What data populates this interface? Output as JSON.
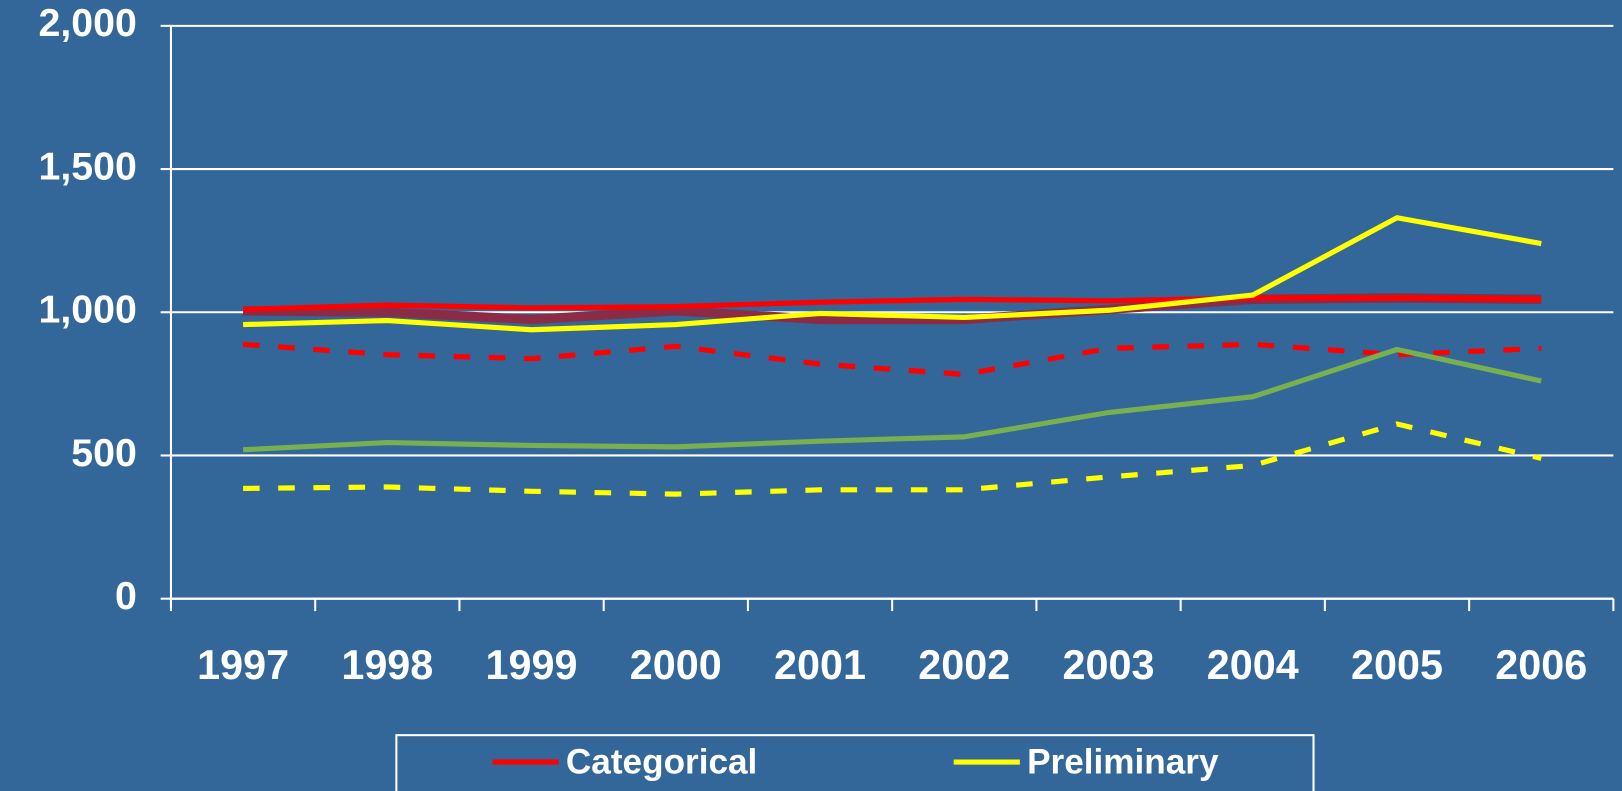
{
  "chart_data": {
    "type": "line",
    "categories": [
      "1997",
      "1998",
      "1999",
      "2000",
      "2001",
      "2002",
      "2003",
      "2004",
      "2005",
      "2006"
    ],
    "ylim": [
      0,
      2000
    ],
    "yticks": [
      0,
      500,
      {
        "value": 1000,
        "label": "1,000"
      },
      {
        "value": 1500,
        "label": "1,500"
      },
      {
        "value": 2000,
        "label": "2,000"
      }
    ],
    "grid": true,
    "legend": "bottom",
    "series": [
      {
        "color": "#8b2b45",
        "width": 9,
        "dash": false,
        "values": [
          1005,
          1000,
          975,
          1005,
          975,
          975,
          1010,
          1045,
          1050,
          1045
        ]
      },
      {
        "name": "Categorical",
        "color": "#ff0000",
        "width": 5,
        "dash": false,
        "values": [
          1010,
          1025,
          1015,
          1020,
          1035,
          1045,
          1040,
          1050,
          1050,
          1045
        ]
      },
      {
        "name": "Preliminary",
        "color": "#ffff00",
        "width": 5,
        "dash": false,
        "values": [
          957,
          971,
          939,
          957,
          996,
          982,
          1007,
          1060,
          1330,
          1240
        ]
      },
      {
        "color": "#ff0000",
        "width": 5,
        "dash": true,
        "values": [
          888,
          852,
          838,
          881,
          819,
          783,
          874,
          888,
          852,
          874
        ]
      },
      {
        "color": "#77b050",
        "width": 5,
        "dash": false,
        "values": [
          520,
          545,
          535,
          530,
          550,
          565,
          650,
          705,
          870,
          760
        ]
      },
      {
        "color": "#ffff00",
        "width": 5,
        "dash": true,
        "values": [
          385,
          390,
          375,
          365,
          380,
          380,
          425,
          465,
          610,
          490
        ]
      }
    ]
  }
}
